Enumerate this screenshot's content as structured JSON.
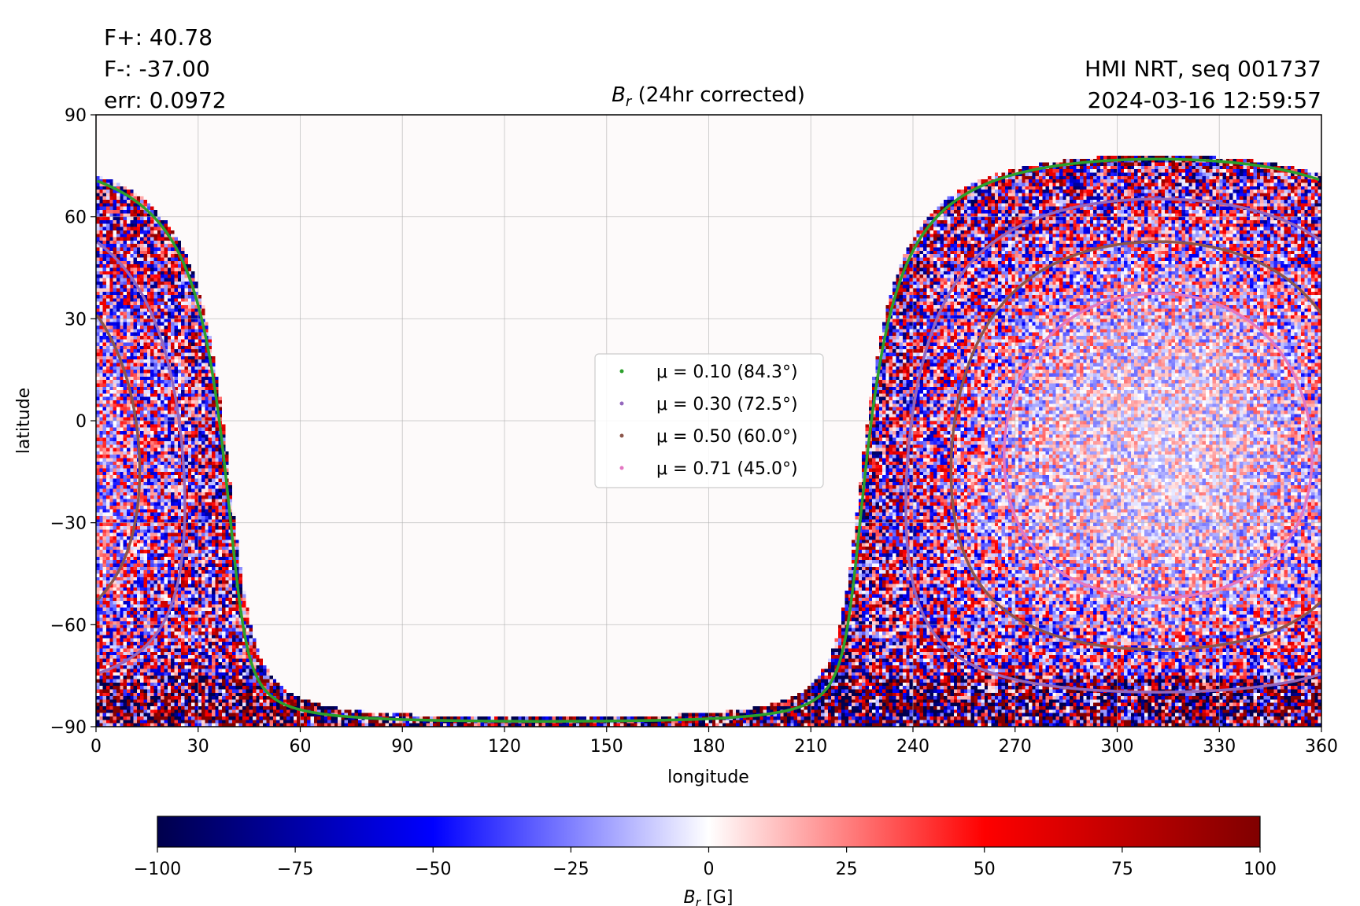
{
  "annotations": {
    "flux_pos": "F+: 40.78",
    "flux_neg": "F-: -37.00",
    "err": "err: 0.0972",
    "source": "HMI NRT, seq 001737",
    "timestamp": "2024-03-16 12:59:57"
  },
  "chart_data": {
    "type": "heatmap",
    "title_symbol": "B",
    "title_sub": "r",
    "title_rest": "(24hr corrected)",
    "xlabel": "longitude",
    "ylabel": "latitude",
    "xlim": [
      0,
      360
    ],
    "ylim": [
      -90,
      90
    ],
    "xticks": [
      0,
      30,
      60,
      90,
      120,
      150,
      180,
      210,
      240,
      270,
      300,
      330,
      360
    ],
    "yticks": [
      -90,
      -60,
      -30,
      0,
      30,
      60,
      90
    ],
    "xtick_labels": [
      "0",
      "30",
      "60",
      "90",
      "120",
      "150",
      "180",
      "210",
      "240",
      "270",
      "300",
      "330",
      "360"
    ],
    "ytick_labels": [
      "−90",
      "−60",
      "−30",
      "0",
      "30",
      "60",
      "90"
    ],
    "grid": true,
    "disk_center": {
      "lon": 312,
      "lat": -7.3
    },
    "legend_placement": "center",
    "legend": [
      {
        "label": "μ = 0.10 (84.3°)",
        "mu": 0.1,
        "angle_deg": 84.3,
        "color": "#2ca02c"
      },
      {
        "label": "μ = 0.30 (72.5°)",
        "mu": 0.3,
        "angle_deg": 72.5,
        "color": "#9467bd"
      },
      {
        "label": "μ = 0.50 (60.0°)",
        "mu": 0.5,
        "angle_deg": 60.0,
        "color": "#8c564b"
      },
      {
        "label": "μ = 0.71 (45.0°)",
        "mu": 0.71,
        "angle_deg": 45.0,
        "color": "#e377c2"
      }
    ],
    "colorbar": {
      "label_symbol": "B",
      "label_sub": "r",
      "label_rest": "[G]",
      "range": [
        -100,
        100
      ],
      "ticks": [
        -100,
        -75,
        -50,
        -25,
        0,
        25,
        50,
        75,
        100
      ],
      "tick_labels": [
        "−100",
        "−75",
        "−50",
        "−25",
        "0",
        "25",
        "50",
        "75",
        "100"
      ],
      "colormap": "seismic",
      "colors": [
        "#00004c",
        "#0000ff",
        "#ffffff",
        "#ff0000",
        "#800000"
      ]
    }
  }
}
